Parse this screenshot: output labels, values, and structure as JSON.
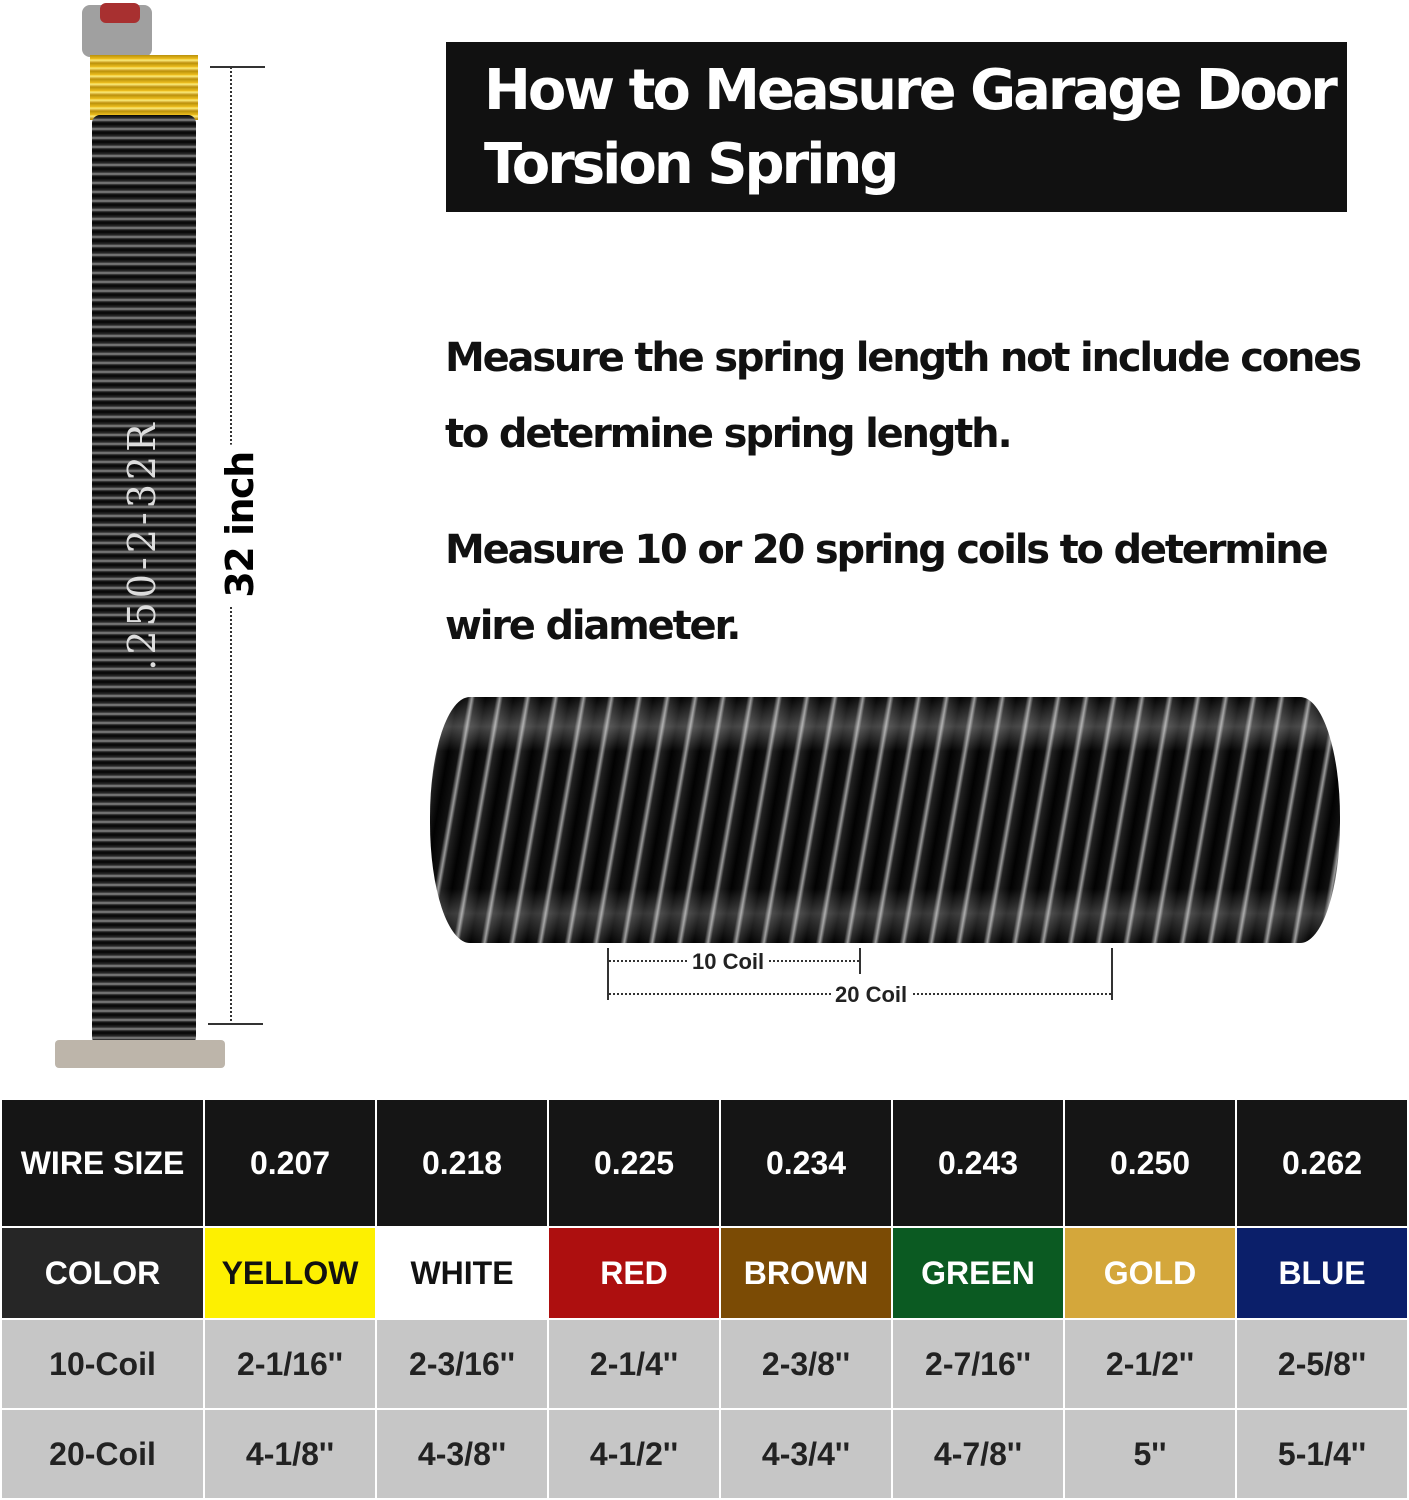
{
  "title": {
    "line1": "How to Measure Garage Door",
    "line2": "Torsion Spring"
  },
  "instructions": [
    {
      "line1": "Measure the spring length not include cones",
      "line2": "to determine spring length."
    },
    {
      "line1": "Measure 10 or 20 spring coils to determine",
      "line2": "wire diameter."
    }
  ],
  "spring_label": ".250-2-32R",
  "length_label": "32 inch",
  "coil_labels": {
    "ten": "10 Coil",
    "twenty": "20 Coil"
  },
  "table": {
    "wire_size": {
      "label": "WIRE SIZE",
      "values": [
        "0.207",
        "0.218",
        "0.225",
        "0.234",
        "0.243",
        "0.250",
        "0.262"
      ]
    },
    "color": {
      "label": "COLOR",
      "values": [
        "YELLOW",
        "WHITE",
        "RED",
        "BROWN",
        "GREEN",
        "GOLD",
        "BLUE"
      ],
      "swatches": [
        "#fdf001",
        "#ffffff",
        "#ad0f0f",
        "#7b4b05",
        "#0b5a22",
        "#d4a73b",
        "#0b1f6a"
      ],
      "text_colors": [
        "#111111",
        "#111111",
        "#ffffff",
        "#ffffff",
        "#ffffff",
        "#ffffff",
        "#ffffff"
      ]
    },
    "coil10": {
      "label": "10-Coil",
      "values": [
        "2-1/16''",
        "2-3/16''",
        "2-1/4''",
        "2-3/8''",
        "2-7/16''",
        "2-1/2''",
        "2-5/8''"
      ]
    },
    "coil20": {
      "label": "20-Coil",
      "values": [
        "4-1/8''",
        "4-3/8''",
        "4-1/2''",
        "4-3/4''",
        "4-7/8''",
        "5''",
        "5-1/4''"
      ]
    }
  }
}
